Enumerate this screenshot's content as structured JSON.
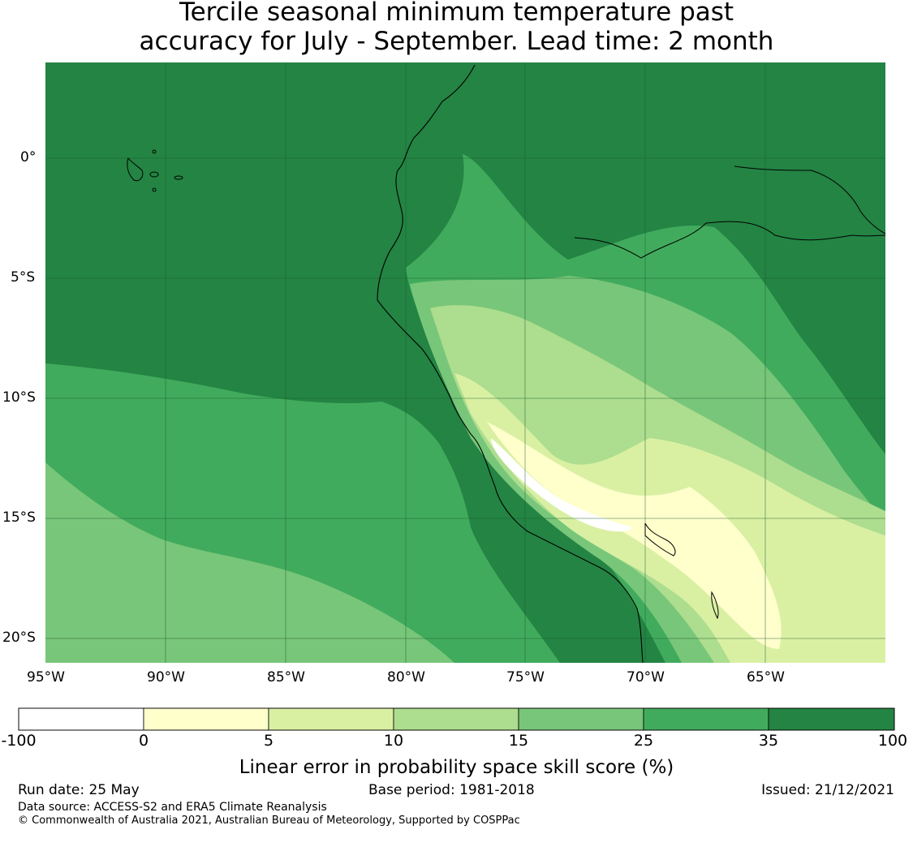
{
  "title": {
    "line1": "Tercile seasonal minimum temperature past",
    "line2": "accuracy for July - September. Lead time: 2 month"
  },
  "map": {
    "lon_labels": [
      "95°W",
      "90°W",
      "85°W",
      "80°W",
      "75°W",
      "70°W",
      "65°W"
    ],
    "lat_labels": [
      "0°",
      "5°S",
      "10°S",
      "15°S",
      "20°S"
    ],
    "extent": {
      "lon_min": -95,
      "lon_max": -60,
      "lat_min": -21,
      "lat_max": 4
    }
  },
  "colorbar": {
    "title": "Linear error in probability space skill score (%)",
    "boundaries": [
      "-100",
      "0",
      "5",
      "10",
      "15",
      "25",
      "35",
      "100"
    ],
    "colors": [
      "#ffffff",
      "#ffffcc",
      "#d9f0a3",
      "#addd8e",
      "#78c679",
      "#41ab5d",
      "#238443"
    ]
  },
  "footer": {
    "run_date": "Run date: 25 May",
    "base_period": "Base period: 1981-2018",
    "issued": "Issued: 21/12/2021",
    "data_source": "Data source: ACCESS-S2 and ERA5 Climate Reanalysis",
    "copyright": "© Commonwealth of Australia 2021, Australian Bureau of Meteorology, Supported by COSPPac"
  }
}
